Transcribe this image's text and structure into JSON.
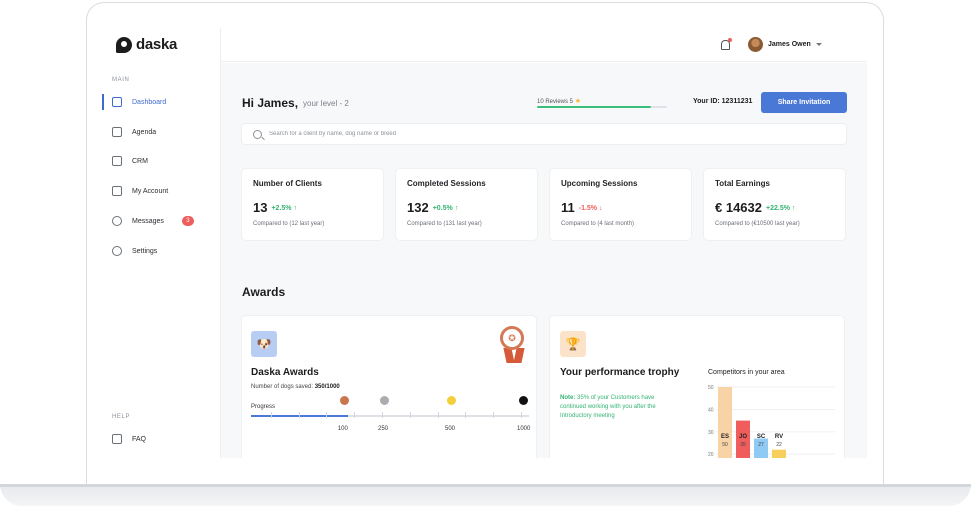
{
  "app": {
    "logo_text": "daska"
  },
  "sidebar": {
    "main_label": "MAIN",
    "help_label": "HELP",
    "items": [
      {
        "label": "Dashboard"
      },
      {
        "label": "Agenda"
      },
      {
        "label": "CRM"
      },
      {
        "label": "My Account"
      },
      {
        "label": "Messages",
        "badge": "3"
      },
      {
        "label": "Settings"
      }
    ],
    "help_items": [
      {
        "label": "FAQ"
      }
    ]
  },
  "header": {
    "user_name": "James Owen"
  },
  "greeting": {
    "title": "Hi James,",
    "level": "your level - 2",
    "reviews_label": "10 Reviews 5",
    "reviews_progress": 0.88,
    "your_id": "Your ID: 12311231",
    "share_button": "Share Invitation"
  },
  "search": {
    "placeholder": "Search for a client by name, dog name or breed"
  },
  "stats": [
    {
      "title": "Number of Clients",
      "value": "13",
      "delta": "+2.5%",
      "direction": "up",
      "sub": "Compared to (12 last year)"
    },
    {
      "title": "Completed Sessions",
      "value": "132",
      "delta": "+0.5%",
      "direction": "up",
      "sub": "Compared to (131 last year)"
    },
    {
      "title": "Upcoming Sessions",
      "value": "11",
      "delta": "-1.5%",
      "direction": "down",
      "sub": "Compared to (4 last month)"
    },
    {
      "title": "Total Earnings",
      "value": "€ 14632",
      "delta": "+22.5%",
      "direction": "up",
      "sub": "Compared to (€10500 last year)"
    }
  ],
  "awards": {
    "heading": "Awards",
    "daska": {
      "title": "Daska Awards",
      "count_label": "Number of dogs saved:",
      "count_value": "350/1000",
      "progress_label": "Progress",
      "progress_value": 350,
      "progress_max": 1000,
      "milestones": [
        {
          "label": "100",
          "value": 100,
          "color": "#c9764f"
        },
        {
          "label": "250",
          "value": 250,
          "color": "#a9acb1"
        },
        {
          "label": "500",
          "value": 500,
          "color": "#f2cf3b"
        },
        {
          "label": "1000",
          "value": 1000,
          "color": "#111111"
        }
      ]
    },
    "trophy": {
      "title": "Your performance trophy",
      "note_bold": "Note:",
      "note": "35% of your Customers have continued working with you after the Introductory meeting"
    }
  },
  "chart_data": {
    "type": "bar",
    "title": "Competitors in your area",
    "categories": [
      "ES",
      "JO",
      "SC",
      "RV"
    ],
    "values": [
      50,
      35,
      27,
      22
    ],
    "value_labels": [
      "50",
      "35",
      "27",
      "22"
    ],
    "colors": [
      "#f8d3a6",
      "#ef5d5d",
      "#8ecaf3",
      "#f7cf5a"
    ],
    "yticks": [
      "50",
      "40",
      "30",
      "20"
    ],
    "ylim": [
      0,
      50
    ],
    "grid": true
  }
}
